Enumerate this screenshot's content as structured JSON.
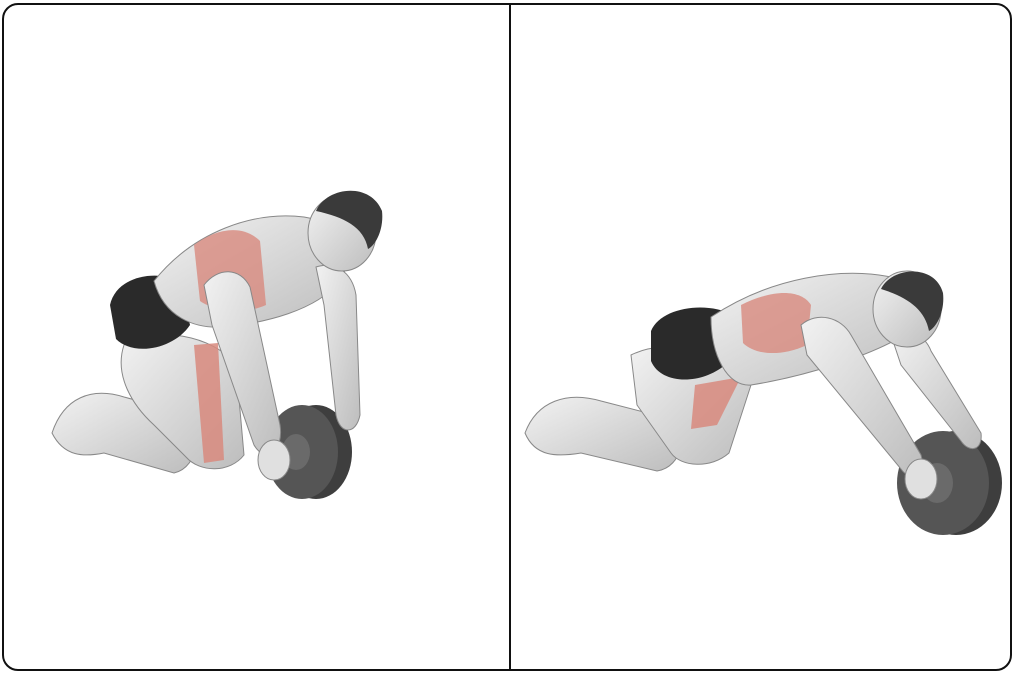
{
  "figure": {
    "panels": [
      {
        "pose": "start-kneeling-wheel-under-shoulders"
      },
      {
        "pose": "extended-kneeling-rollout"
      }
    ]
  },
  "colors": {
    "border": "#111111",
    "skin": "#e6e6e6",
    "skin_shade": "#b9b9b9",
    "muscle_highlight": "#d88a7e",
    "shorts": "#2a2a2a",
    "hair": "#3a3a3a",
    "wheel": "#555555",
    "wheel_dark": "#3e3e3e"
  }
}
